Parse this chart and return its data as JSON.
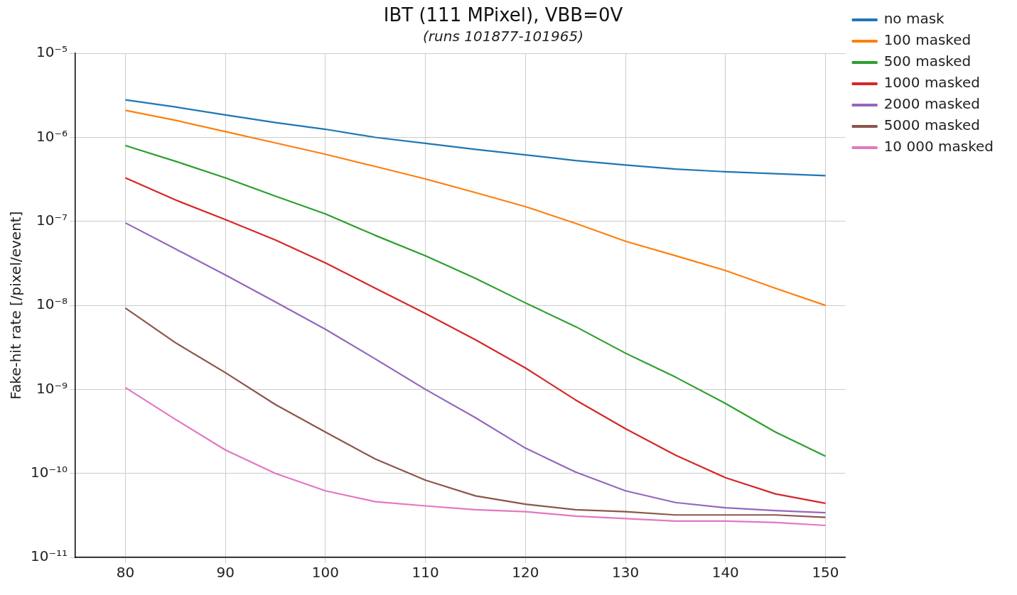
{
  "chart_data": {
    "type": "line",
    "title": "IBT (111 MPixel), VBB=0V",
    "subtitle": "(runs 101877-101965)",
    "ylabel": "Fake-hit rate [/pixel/event]",
    "log": "y",
    "grid": true,
    "legend": "top right",
    "marker": "none",
    "line_style": "solid",
    "x": [
      80,
      85,
      90,
      95,
      100,
      105,
      110,
      115,
      120,
      125,
      130,
      135,
      140,
      145,
      150
    ],
    "xlim": [
      75,
      152
    ],
    "xticks": [
      80,
      90,
      100,
      110,
      120,
      130,
      140,
      150
    ],
    "ylim": [
      1e-11,
      1e-05
    ],
    "yticks": [
      {
        "value": 1e-11,
        "label": "10⁻¹¹"
      },
      {
        "value": 1e-10,
        "label": "10⁻¹⁰"
      },
      {
        "value": 1e-09,
        "label": "10⁻⁹"
      },
      {
        "value": 1e-08,
        "label": "10⁻⁸"
      },
      {
        "value": 1e-07,
        "label": "10⁻⁷"
      },
      {
        "value": 1e-06,
        "label": "10⁻⁶"
      },
      {
        "value": 1e-05,
        "label": "10⁻⁵"
      }
    ],
    "series": [
      {
        "name": "no mask",
        "color": "#1f77b4",
        "values": [
          2.8e-06,
          2.3e-06,
          1.85e-06,
          1.5e-06,
          1.25e-06,
          1e-06,
          8.5e-07,
          7.2e-07,
          6.2e-07,
          5.3e-07,
          4.7e-07,
          4.2e-07,
          3.9e-07,
          3.7e-07,
          3.5e-07
        ]
      },
      {
        "name": "100 masked",
        "color": "#ff7f0e",
        "values": [
          2.1e-06,
          1.6e-06,
          1.17e-06,
          8.6e-07,
          6.3e-07,
          4.5e-07,
          3.2e-07,
          2.2e-07,
          1.5e-07,
          9.5e-08,
          5.8e-08,
          3.9e-08,
          2.6e-08,
          1.6e-08,
          1e-08
        ]
      },
      {
        "name": "500 masked",
        "color": "#2ca02c",
        "values": [
          8e-07,
          5.2e-07,
          3.3e-07,
          2e-07,
          1.23e-07,
          6.8e-08,
          3.9e-08,
          2.1e-08,
          1.07e-08,
          5.6e-09,
          2.7e-09,
          1.4e-09,
          6.8e-10,
          3.1e-10,
          1.6e-10
        ]
      },
      {
        "name": "1000 masked",
        "color": "#d62728",
        "values": [
          3.3e-07,
          1.8e-07,
          1.05e-07,
          6e-08,
          3.2e-08,
          1.6e-08,
          8e-09,
          3.9e-09,
          1.8e-09,
          7.5e-10,
          3.4e-10,
          1.65e-10,
          8.9e-11,
          5.7e-11,
          4.4e-11
        ]
      },
      {
        "name": "2000 masked",
        "color": "#9467bd",
        "values": [
          9.6e-08,
          4.7e-08,
          2.3e-08,
          1.1e-08,
          5.2e-09,
          2.3e-09,
          1e-09,
          4.6e-10,
          2e-10,
          1.04e-10,
          6.2e-11,
          4.5e-11,
          3.9e-11,
          3.6e-11,
          3.4e-11
        ]
      },
      {
        "name": "5000 masked",
        "color": "#8c564b",
        "values": [
          9.3e-09,
          3.6e-09,
          1.58e-09,
          6.6e-10,
          3.1e-10,
          1.48e-10,
          8.3e-11,
          5.4e-11,
          4.3e-11,
          3.7e-11,
          3.5e-11,
          3.2e-11,
          3.2e-11,
          3.2e-11,
          3e-11
        ]
      },
      {
        "name": "10 000 masked",
        "color": "#e377c2",
        "values": [
          1.05e-09,
          4.4e-10,
          1.9e-10,
          1e-10,
          6.2e-11,
          4.6e-11,
          4.1e-11,
          3.7e-11,
          3.5e-11,
          3.1e-11,
          2.9e-11,
          2.7e-11,
          2.7e-11,
          2.6e-11,
          2.4e-11
        ]
      }
    ]
  }
}
